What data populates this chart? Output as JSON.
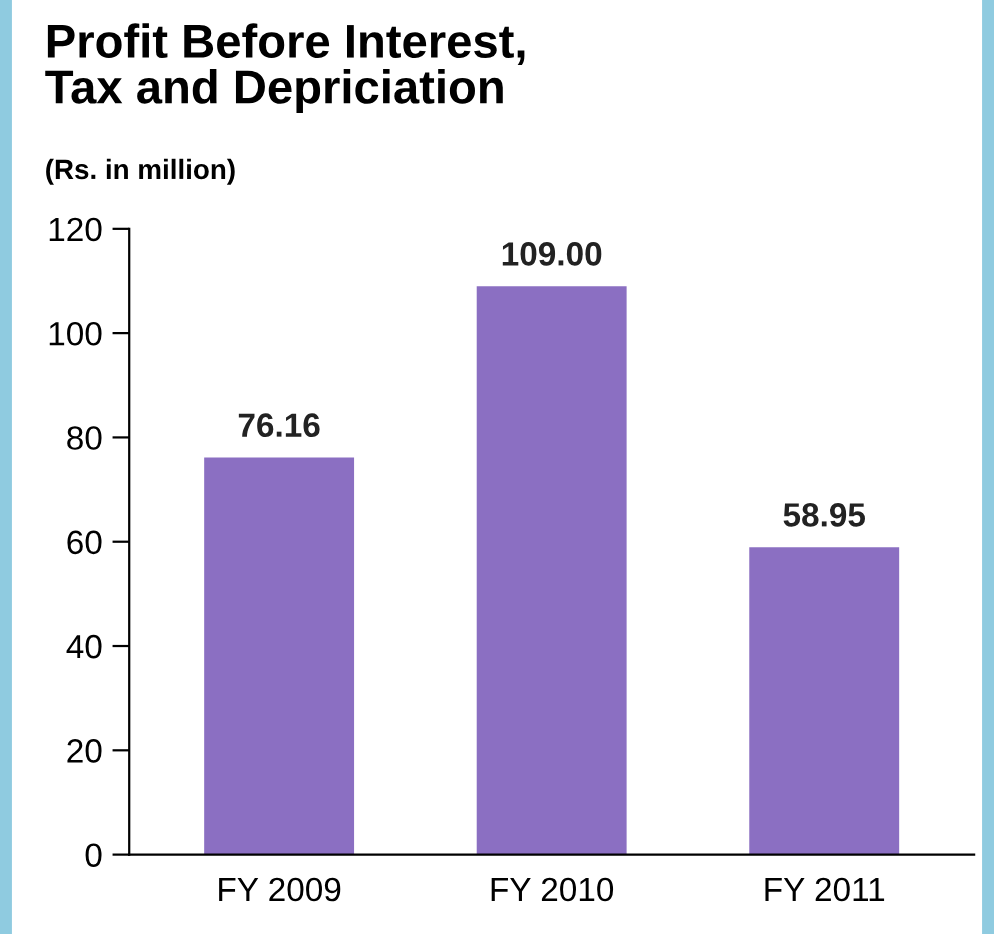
{
  "chart_data": {
    "type": "bar",
    "title": "Profit Before Interest,\nTax and Depriciation",
    "subtitle": "(Rs. in million)",
    "categories": [
      "FY 2009",
      "FY 2010",
      "FY 2011"
    ],
    "values": [
      76.16,
      109.0,
      58.95
    ],
    "value_labels": [
      "76.16",
      "109.00",
      "58.95"
    ],
    "color": "#8b6fc2",
    "ylim": [
      0,
      120
    ],
    "yticks": [
      0,
      20,
      40,
      60,
      80,
      100,
      120
    ],
    "grid": false,
    "legend": false
  }
}
